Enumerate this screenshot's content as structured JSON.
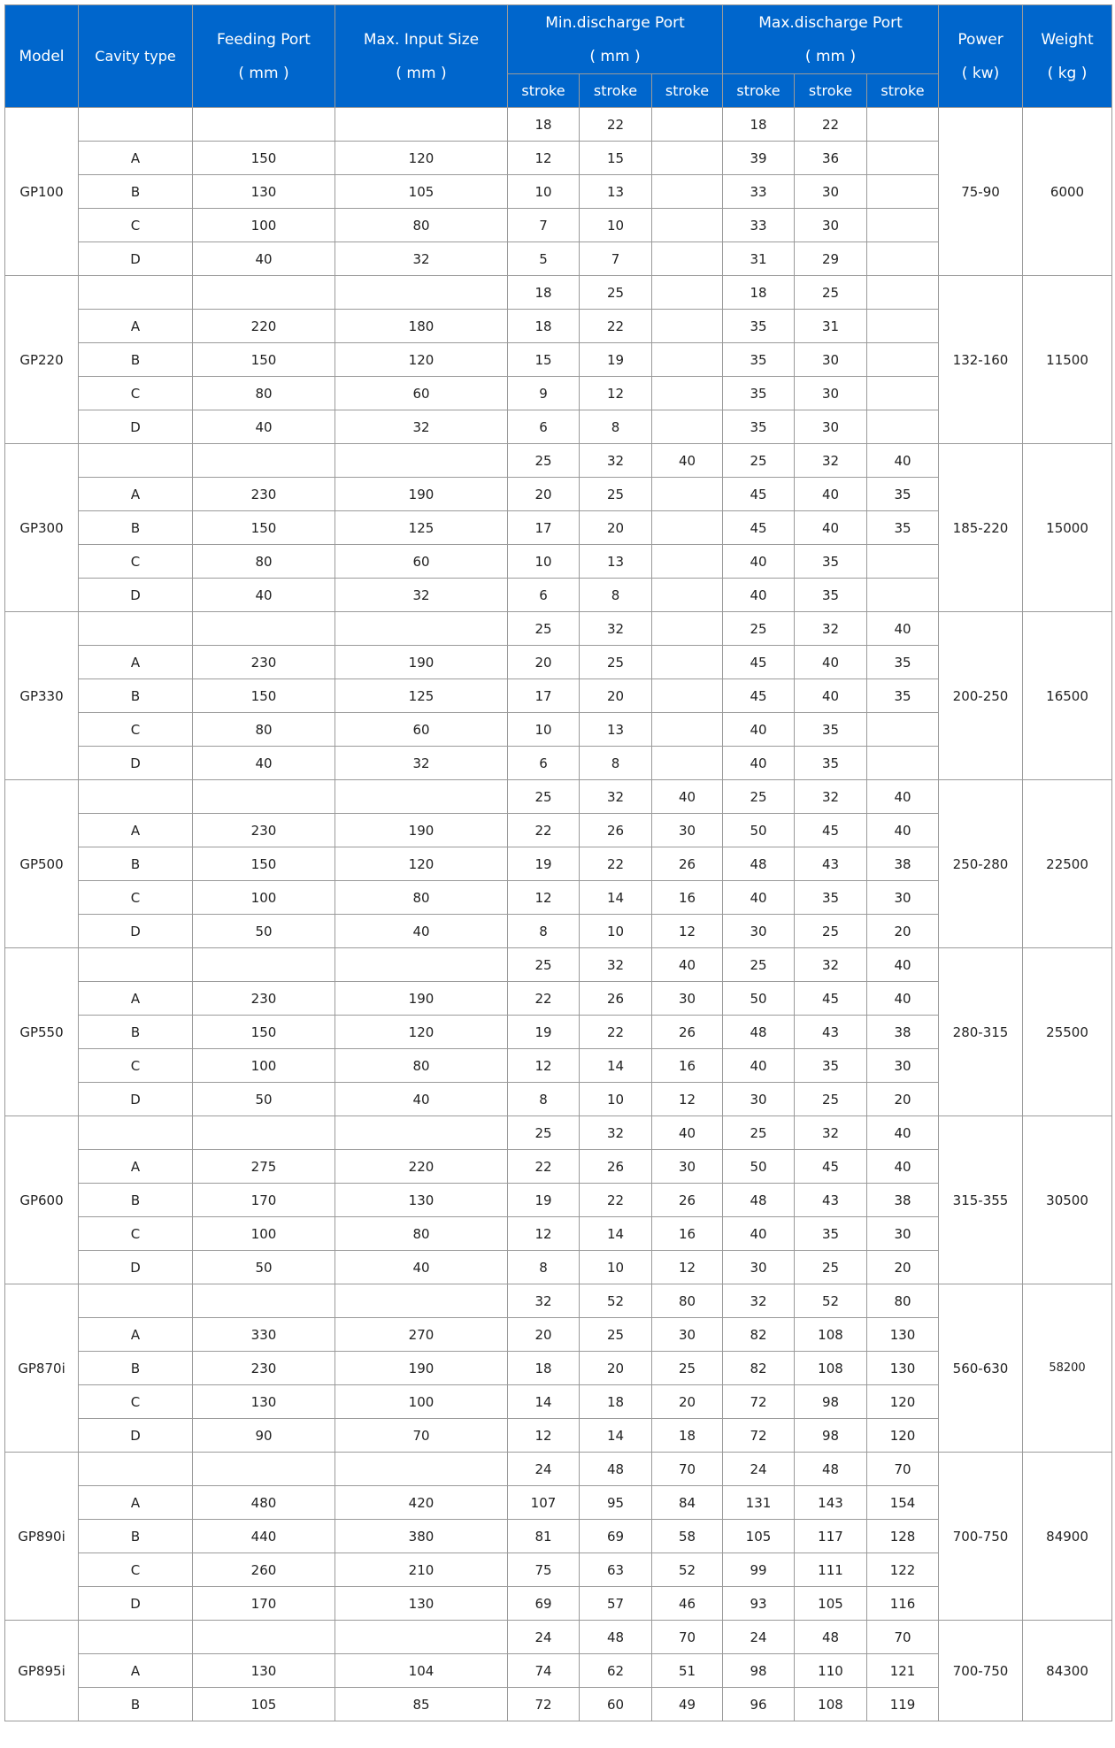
{
  "header": {
    "model": "Model",
    "cavity_type": "Cavity type",
    "feeding_port": "Feeding Port",
    "feeding_port_unit": "( mm )",
    "max_input": "Max. Input Size",
    "max_input_unit": "( mm )",
    "min_discharge": "Min.discharge Port",
    "min_discharge_unit": "( mm )",
    "max_discharge": "Max.discharge Port",
    "max_discharge_unit": "( mm )",
    "power": "Power",
    "power_unit": "( kw)",
    "weight": "Weight",
    "weight_unit": "( kg )",
    "stroke": "stroke"
  },
  "colors": {
    "header_bg": "#0066cc",
    "header_text": "#ffffff",
    "border": "#9a9a9a"
  },
  "models": [
    {
      "model": "GP100",
      "power": "75-90",
      "weight": "6000",
      "rows": [
        [
          "",
          "",
          "",
          "18",
          "22",
          "",
          "18",
          "22",
          ""
        ],
        [
          "A",
          "150",
          "120",
          "12",
          "15",
          "",
          "39",
          "36",
          ""
        ],
        [
          "B",
          "130",
          "105",
          "10",
          "13",
          "",
          "33",
          "30",
          ""
        ],
        [
          "C",
          "100",
          "80",
          "7",
          "10",
          "",
          "33",
          "30",
          ""
        ],
        [
          "D",
          "40",
          "32",
          "5",
          "7",
          "",
          "31",
          "29",
          ""
        ]
      ]
    },
    {
      "model": "GP220",
      "power": "132-160",
      "weight": "11500",
      "rows": [
        [
          "",
          "",
          "",
          "18",
          "25",
          "",
          "18",
          "25",
          ""
        ],
        [
          "A",
          "220",
          "180",
          "18",
          "22",
          "",
          "35",
          "31",
          ""
        ],
        [
          "B",
          "150",
          "120",
          "15",
          "19",
          "",
          "35",
          "30",
          ""
        ],
        [
          "C",
          "80",
          "60",
          "9",
          "12",
          "",
          "35",
          "30",
          ""
        ],
        [
          "D",
          "40",
          "32",
          "6",
          "8",
          "",
          "35",
          "30",
          ""
        ]
      ]
    },
    {
      "model": "GP300",
      "power": "185-220",
      "weight": "15000",
      "rows": [
        [
          "",
          "",
          "",
          "25",
          "32",
          "40",
          "25",
          "32",
          "40"
        ],
        [
          "A",
          "230",
          "190",
          "20",
          "25",
          "",
          "45",
          "40",
          "35"
        ],
        [
          "B",
          "150",
          "125",
          "17",
          "20",
          "",
          "45",
          "40",
          "35"
        ],
        [
          "C",
          "80",
          "60",
          "10",
          "13",
          "",
          "40",
          "35",
          ""
        ],
        [
          "D",
          "40",
          "32",
          "6",
          "8",
          "",
          "40",
          "35",
          ""
        ]
      ]
    },
    {
      "model": "GP330",
      "power": "200-250",
      "weight": "16500",
      "rows": [
        [
          "",
          "",
          "",
          "25",
          "32",
          "",
          "25",
          "32",
          "40"
        ],
        [
          "A",
          "230",
          "190",
          "20",
          "25",
          "",
          "45",
          "40",
          "35"
        ],
        [
          "B",
          "150",
          "125",
          "17",
          "20",
          "",
          "45",
          "40",
          "35"
        ],
        [
          "C",
          "80",
          "60",
          "10",
          "13",
          "",
          "40",
          "35",
          ""
        ],
        [
          "D",
          "40",
          "32",
          "6",
          "8",
          "",
          "40",
          "35",
          ""
        ]
      ]
    },
    {
      "model": "GP500",
      "power": "250-280",
      "weight": "22500",
      "rows": [
        [
          "",
          "",
          "",
          "25",
          "32",
          "40",
          "25",
          "32",
          "40"
        ],
        [
          "A",
          "230",
          "190",
          "22",
          "26",
          "30",
          "50",
          "45",
          "40"
        ],
        [
          "B",
          "150",
          "120",
          "19",
          "22",
          "26",
          "48",
          "43",
          "38"
        ],
        [
          "C",
          "100",
          "80",
          "12",
          "14",
          "16",
          "40",
          "35",
          "30"
        ],
        [
          "D",
          "50",
          "40",
          "8",
          "10",
          "12",
          "30",
          "25",
          "20"
        ]
      ]
    },
    {
      "model": "GP550",
      "power": "280-315",
      "weight": "25500",
      "rows": [
        [
          "",
          "",
          "",
          "25",
          "32",
          "40",
          "25",
          "32",
          "40"
        ],
        [
          "A",
          "230",
          "190",
          "22",
          "26",
          "30",
          "50",
          "45",
          "40"
        ],
        [
          "B",
          "150",
          "120",
          "19",
          "22",
          "26",
          "48",
          "43",
          "38"
        ],
        [
          "C",
          "100",
          "80",
          "12",
          "14",
          "16",
          "40",
          "35",
          "30"
        ],
        [
          "D",
          "50",
          "40",
          "8",
          "10",
          "12",
          "30",
          "25",
          "20"
        ]
      ]
    },
    {
      "model": "GP600",
      "power": "315-355",
      "weight": "30500",
      "rows": [
        [
          "",
          "",
          "",
          "25",
          "32",
          "40",
          "25",
          "32",
          "40"
        ],
        [
          "A",
          "275",
          "220",
          "22",
          "26",
          "30",
          "50",
          "45",
          "40"
        ],
        [
          "B",
          "170",
          "130",
          "19",
          "22",
          "26",
          "48",
          "43",
          "38"
        ],
        [
          "C",
          "100",
          "80",
          "12",
          "14",
          "16",
          "40",
          "35",
          "30"
        ],
        [
          "D",
          "50",
          "40",
          "8",
          "10",
          "12",
          "30",
          "25",
          "20"
        ]
      ]
    },
    {
      "model": "GP870i",
      "power": "560-630",
      "weight": "58200",
      "small_weight": true,
      "rows": [
        [
          "",
          "",
          "",
          "32",
          "52",
          "80",
          "32",
          "52",
          "80"
        ],
        [
          "A",
          "330",
          "270",
          "20",
          "25",
          "30",
          "82",
          "108",
          "130"
        ],
        [
          "B",
          "230",
          "190",
          "18",
          "20",
          "25",
          "82",
          "108",
          "130"
        ],
        [
          "C",
          "130",
          "100",
          "14",
          "18",
          "20",
          "72",
          "98",
          "120"
        ],
        [
          "D",
          "90",
          "70",
          "12",
          "14",
          "18",
          "72",
          "98",
          "120"
        ]
      ]
    },
    {
      "model": "GP890i",
      "power": "700-750",
      "weight": "84900",
      "rows": [
        [
          "",
          "",
          "",
          "24",
          "48",
          "70",
          "24",
          "48",
          "70"
        ],
        [
          "A",
          "480",
          "420",
          "107",
          "95",
          "84",
          "131",
          "143",
          "154"
        ],
        [
          "B",
          "440",
          "380",
          "81",
          "69",
          "58",
          "105",
          "117",
          "128"
        ],
        [
          "C",
          "260",
          "210",
          "75",
          "63",
          "52",
          "99",
          "111",
          "122"
        ],
        [
          "D",
          "170",
          "130",
          "69",
          "57",
          "46",
          "93",
          "105",
          "116"
        ]
      ]
    },
    {
      "model": "GP895i",
      "power": "700-750",
      "weight": "84300",
      "rows": [
        [
          "",
          "",
          "",
          "24",
          "48",
          "70",
          "24",
          "48",
          "70"
        ],
        [
          "A",
          "130",
          "104",
          "74",
          "62",
          "51",
          "98",
          "110",
          "121"
        ],
        [
          "B",
          "105",
          "85",
          "72",
          "60",
          "49",
          "96",
          "108",
          "119"
        ]
      ]
    }
  ]
}
